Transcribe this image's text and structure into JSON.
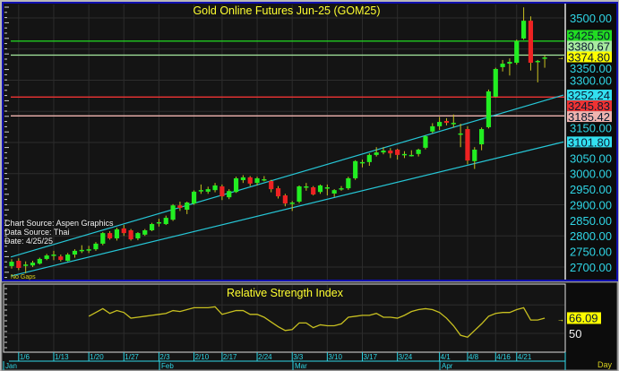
{
  "chart_data": [
    {
      "type": "candlestick",
      "title": "Gold Online Futures Jun-25 (GOM25)",
      "ylim": [
        2680,
        3540
      ],
      "grid": true,
      "y_ticks": [
        "3500.00",
        "3350.00",
        "3300.00",
        "3150.00",
        "3050.00",
        "3000.00",
        "2950.00",
        "2900.00",
        "2850.00",
        "2800.00",
        "2750.00",
        "2700.00"
      ],
      "candle_fields": [
        "open",
        "high",
        "low",
        "close"
      ],
      "candles": [
        [
          2703,
          2725,
          2695,
          2717
        ],
        [
          2720,
          2728,
          2690,
          2697
        ],
        [
          2708,
          2718,
          2680,
          2708
        ],
        [
          2705,
          2720,
          2700,
          2714
        ],
        [
          2711,
          2730,
          2708,
          2726
        ],
        [
          2726,
          2742,
          2722,
          2737
        ],
        [
          2740,
          2752,
          2722,
          2740
        ],
        [
          2734,
          2740,
          2718,
          2723
        ],
        [
          2720,
          2745,
          2718,
          2740
        ],
        [
          2740,
          2757,
          2730,
          2752
        ],
        [
          2752,
          2770,
          2745,
          2755
        ],
        [
          2755,
          2768,
          2745,
          2757
        ],
        [
          2757,
          2780,
          2752,
          2775
        ],
        [
          2775,
          2812,
          2770,
          2809
        ],
        [
          2809,
          2815,
          2788,
          2792
        ],
        [
          2792,
          2826,
          2785,
          2821
        ],
        [
          2824,
          2835,
          2800,
          2809
        ],
        [
          2818,
          2822,
          2785,
          2789
        ],
        [
          2792,
          2812,
          2786,
          2809
        ],
        [
          2804,
          2822,
          2800,
          2818
        ],
        [
          2818,
          2842,
          2815,
          2838
        ],
        [
          2842,
          2855,
          2830,
          2844
        ],
        [
          2838,
          2865,
          2835,
          2858
        ],
        [
          2852,
          2902,
          2848,
          2898
        ],
        [
          2898,
          2910,
          2880,
          2890
        ],
        [
          2884,
          2910,
          2870,
          2907
        ],
        [
          2904,
          2946,
          2900,
          2942
        ],
        [
          2947,
          2965,
          2935,
          2947
        ],
        [
          2942,
          2958,
          2935,
          2950
        ],
        [
          2947,
          2970,
          2940,
          2962
        ],
        [
          2959,
          2965,
          2915,
          2927
        ],
        [
          2924,
          2950,
          2918,
          2944
        ],
        [
          2941,
          2990,
          2938,
          2985
        ],
        [
          2979,
          2995,
          2970,
          2988
        ],
        [
          2988,
          2992,
          2960,
          2968
        ],
        [
          2970,
          2990,
          2962,
          2985
        ],
        [
          2982,
          2992,
          2975,
          2982
        ],
        [
          2976,
          2980,
          2940,
          2950
        ],
        [
          2953,
          2960,
          2920,
          2927
        ],
        [
          2930,
          2935,
          2895,
          2904
        ],
        [
          2907,
          2912,
          2880,
          2907
        ],
        [
          2910,
          2962,
          2905,
          2959
        ],
        [
          2959,
          2970,
          2945,
          2959
        ],
        [
          2956,
          2960,
          2930,
          2933
        ],
        [
          2941,
          2965,
          2935,
          2962
        ],
        [
          2956,
          2965,
          2930,
          2956
        ],
        [
          2936,
          2950,
          2925,
          2947
        ],
        [
          2953,
          2960,
          2945,
          2953
        ],
        [
          2953,
          2990,
          2948,
          2985
        ],
        [
          2985,
          3043,
          2980,
          3040
        ],
        [
          3037,
          3045,
          3020,
          3037
        ],
        [
          3037,
          3065,
          3025,
          3060
        ],
        [
          3060,
          3085,
          3055,
          3068
        ],
        [
          3068,
          3085,
          3062,
          3074
        ],
        [
          3074,
          3082,
          3050,
          3065
        ],
        [
          3077,
          3080,
          3045,
          3060
        ],
        [
          3063,
          3072,
          3050,
          3063
        ],
        [
          3060,
          3075,
          3055,
          3060
        ],
        [
          3063,
          3080,
          3055,
          3077
        ],
        [
          3083,
          3122,
          3078,
          3120
        ],
        [
          3135,
          3162,
          3130,
          3152
        ],
        [
          3152,
          3182,
          3140,
          3166
        ],
        [
          3169,
          3178,
          3155,
          3163
        ],
        [
          3163,
          3190,
          3148,
          3163
        ],
        [
          3129,
          3160,
          3085,
          3129
        ],
        [
          3143,
          3152,
          3030,
          3042
        ],
        [
          3040,
          3085,
          3015,
          3077
        ],
        [
          3094,
          3148,
          3075,
          3143
        ],
        [
          3149,
          3270,
          3145,
          3264
        ],
        [
          3247,
          3340,
          3245,
          3336
        ],
        [
          3342,
          3365,
          3328,
          3353
        ],
        [
          3353,
          3370,
          3315,
          3359
        ],
        [
          3356,
          3430,
          3350,
          3425
        ],
        [
          3434,
          3534,
          3430,
          3491
        ],
        [
          3491,
          3505,
          3331,
          3356
        ],
        [
          3362,
          3365,
          3293,
          3362
        ],
        [
          3370,
          3380,
          3340,
          3373
        ]
      ],
      "colors": {
        "up": "#22ee22",
        "down": "#ee2222",
        "wick": "#c8c020",
        "trendline": "#26c6d6",
        "axis_text": "#2fd6e6"
      },
      "horizontal_lines": [
        {
          "value": 3425.5,
          "label": "3425.50",
          "color": "#22dd22",
          "line": true
        },
        {
          "value": 3380.67,
          "label": "3380.67",
          "color": "#a8eaa0",
          "line": true
        },
        {
          "value": 3374.8,
          "label": "3374.80",
          "color": "#ffff00",
          "line": false,
          "last": true
        },
        {
          "value": 3252.24,
          "label": "3252.24",
          "color": "#33e0f0",
          "line": false
        },
        {
          "value": 3245.83,
          "label": "3245.83",
          "color": "#ee3333",
          "line": true
        },
        {
          "value": 3185.42,
          "label": "3185.42",
          "color": "#f0b4b0",
          "line": true
        },
        {
          "value": 3101.8,
          "label": "3101.80",
          "color": "#33e0f0",
          "line": false
        }
      ],
      "trendlines": [
        {
          "start": 2732,
          "end": 3252.24
        },
        {
          "start": 2671,
          "end": 3101.8
        }
      ],
      "annotations": {
        "chart_source": "Chart Source: Aspen Graphics",
        "data_source": "Data Source: Thai",
        "date": "Date:   4/25/25",
        "gaps": "No Gaps"
      }
    },
    {
      "type": "line",
      "title": "Relative Strength Index",
      "ylim": [
        15,
        100
      ],
      "y_ticks": [
        "50"
      ],
      "last_value": "66.09",
      "color": "#c8c020",
      "values": [
        null,
        null,
        null,
        null,
        null,
        null,
        null,
        null,
        null,
        null,
        null,
        68,
        72,
        76,
        71,
        74,
        72,
        66,
        67,
        68,
        69,
        70,
        71,
        74,
        73,
        75,
        77,
        77,
        77,
        78,
        70,
        72,
        74,
        74,
        70,
        70,
        67,
        62,
        57,
        53,
        54,
        61,
        61,
        56,
        59,
        58,
        58,
        60,
        67,
        68,
        69,
        69,
        71,
        67,
        67,
        66,
        69,
        73,
        75,
        76,
        75,
        72,
        66,
        58,
        48,
        46,
        53,
        60,
        68,
        71,
        72,
        72,
        75,
        77,
        64,
        64,
        66.09
      ]
    }
  ],
  "x_axis": {
    "date_labels": [
      "1/6",
      "1/13",
      "1/20",
      "1/27",
      "2/3",
      "2/10",
      "2/17",
      "2/24",
      "3/3",
      "3/10",
      "3/17",
      "3/24",
      "4/1",
      "4/8",
      "4/16",
      "4/21"
    ],
    "month_labels": [
      "Jan",
      "Feb",
      "Mar",
      "Apr"
    ],
    "period": "Day"
  }
}
